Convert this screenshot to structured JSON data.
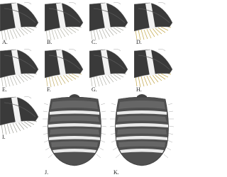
{
  "labels": [
    "A.",
    "B.",
    "C.",
    "D.",
    "E.",
    "F.",
    "G.",
    "H.",
    "I.",
    "J.",
    "K."
  ]
}
